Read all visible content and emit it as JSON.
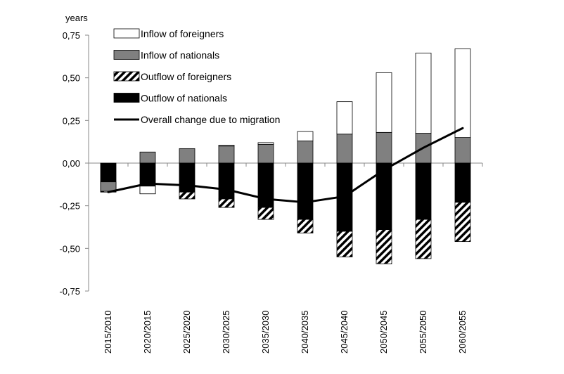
{
  "chart_data": {
    "type": "bar",
    "stacked": true,
    "ylabel": "years",
    "ylim": [
      -0.75,
      0.75
    ],
    "yticks": [
      0.75,
      0.5,
      0.25,
      0.0,
      -0.25,
      -0.5,
      -0.75
    ],
    "ytick_labels": [
      "0,75",
      "0,50",
      "0,25",
      "0,00",
      "-0,25",
      "-0,50",
      "-0,75"
    ],
    "categories": [
      "2015/2010",
      "2020/2015",
      "2025/2020",
      "2030/2025",
      "2035/2030",
      "2040/2035",
      "2045/2040",
      "2050/2045",
      "2055/2050",
      "2060/2055"
    ],
    "series": [
      {
        "name": "Inflow of foreigners",
        "type": "bar",
        "fill": "white",
        "values": [
          0.0,
          0.0,
          0.0,
          0.005,
          0.01,
          0.055,
          0.19,
          0.35,
          0.47,
          0.52
        ]
      },
      {
        "name": "Inflow of nationals",
        "type": "bar",
        "fill": "gray",
        "values": [
          0.0,
          0.065,
          0.085,
          0.1,
          0.11,
          0.13,
          0.17,
          0.18,
          0.175,
          0.15
        ]
      },
      {
        "name": "Outflow of foreigners",
        "type": "bar",
        "fill": "hatched",
        "values": [
          -0.05,
          -0.04,
          -0.04,
          -0.05,
          -0.07,
          -0.08,
          -0.15,
          -0.2,
          -0.23,
          -0.23
        ]
      },
      {
        "name": "Outflow of nationals",
        "type": "bar",
        "fill": "black",
        "values": [
          -0.12,
          -0.14,
          -0.17,
          -0.21,
          -0.26,
          -0.33,
          -0.4,
          -0.39,
          -0.33,
          -0.23
        ]
      },
      {
        "name": "Overall change due to migration",
        "type": "line",
        "values": [
          -0.17,
          -0.12,
          -0.13,
          -0.155,
          -0.21,
          -0.23,
          -0.195,
          -0.04,
          0.09,
          0.205
        ]
      }
    ],
    "extra_bars": [
      {
        "category": "2015/2010",
        "series": "Inflow of nationals",
        "fill": "gray",
        "from": -0.11,
        "to": -0.165
      },
      {
        "category": "2020/2015",
        "series": "Inflow of foreigners",
        "fill": "white",
        "from": -0.135,
        "to": -0.18
      }
    ],
    "legend_position": "top-left",
    "grid": false
  }
}
